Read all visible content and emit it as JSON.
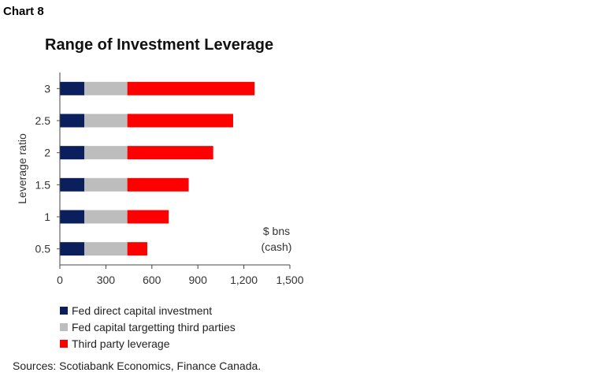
{
  "header": {
    "chart_label": "Chart 8"
  },
  "source": "Sources: Scotiabank Economics, Finance Canada.",
  "colors": {
    "fed_direct": "#0a1f5c",
    "fed_third": "#bdbdbd",
    "third_party": "#ff0000"
  },
  "chart_data": {
    "type": "bar",
    "orientation": "horizontal",
    "stacked": true,
    "title": "Range of Investment Leverage",
    "ylabel": "Leverage ratio",
    "xlabel": "",
    "unit_note": [
      "$ bns",
      "(cash)"
    ],
    "categories": [
      "3",
      "2.5",
      "2",
      "1.5",
      "1",
      "0.5"
    ],
    "xlim": [
      0,
      1500
    ],
    "x_ticks": [
      0,
      300,
      600,
      900,
      1200,
      1500
    ],
    "x_tick_labels": [
      "0",
      "300",
      "600",
      "900",
      "1,200",
      "1,500"
    ],
    "series": [
      {
        "name": "Fed direct capital investment",
        "color": "#0a1f5c",
        "values": [
          160,
          160,
          160,
          160,
          160,
          160
        ]
      },
      {
        "name": "Fed capital targetting third parties",
        "color": "#bdbdbd",
        "values": [
          280,
          280,
          280,
          280,
          280,
          280
        ]
      },
      {
        "name": "Third party leverage",
        "color": "#ff0000",
        "values": [
          830,
          690,
          560,
          400,
          270,
          130
        ]
      }
    ],
    "legend_position": "bottom-left",
    "grid": false
  }
}
